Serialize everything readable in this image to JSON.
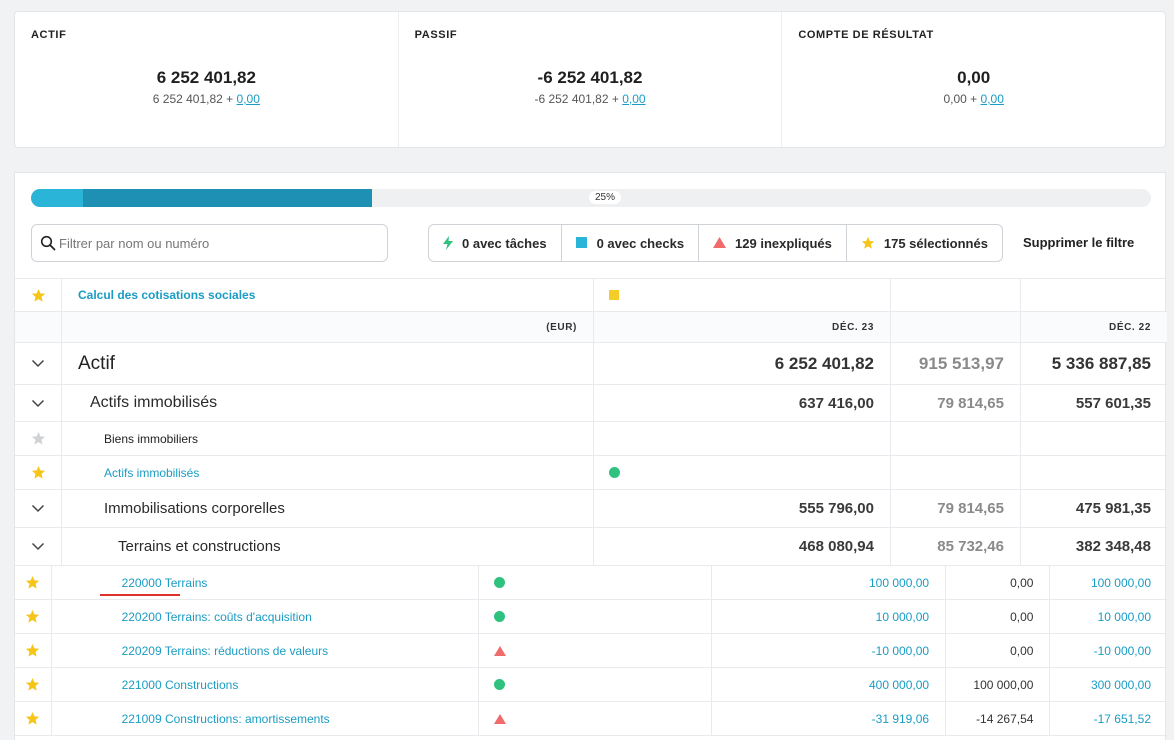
{
  "summary": {
    "actif": {
      "title": "ACTIF",
      "main": "6 252 401,82",
      "sub": "6 252 401,82 +",
      "sub_link": "0,00"
    },
    "passif": {
      "title": "PASSIF",
      "main": "-6 252 401,82",
      "sub": "-6 252 401,82 +",
      "sub_link": "0,00"
    },
    "resultat": {
      "title": "COMPTE DE RÉSULTAT",
      "main": "0,00",
      "sub": "0,00 +",
      "sub_link": "0,00"
    }
  },
  "progress": {
    "label": "25%",
    "segment_a_fraction": 0.046,
    "segment_b_fraction": 0.258,
    "segment_a_color": "#29b4d8",
    "segment_b_color": "#1e90b4"
  },
  "search": {
    "placeholder": "Filtrer par nom ou numéro",
    "value": ""
  },
  "filters": [
    {
      "icon": "lightning-icon",
      "label": "0 avec tâches"
    },
    {
      "icon": "square-icon",
      "label": "0 avec checks"
    },
    {
      "icon": "triangle-icon",
      "label": "129 inexpliqués"
    },
    {
      "icon": "star-icon",
      "label": "175 sélectionnés"
    }
  ],
  "clear_filter_label": "Supprimer le filtre",
  "table": {
    "top_row": {
      "label": "Calcul des cotisations sociales",
      "status": "square"
    },
    "header": {
      "currency": "(EUR)",
      "col1": "DÉC. 23",
      "col2": "",
      "col3": "DÉC. 22"
    },
    "rows": [
      {
        "label": "Actif",
        "v1": "6 252 401,82",
        "v2": "915 513,97",
        "v3": "5 336 887,85"
      },
      {
        "label": "Actifs immobilisés",
        "v1": "637 416,00",
        "v2": "79 814,65",
        "v3": "557 601,35"
      },
      {
        "label": "Biens immobiliers"
      },
      {
        "label": "Actifs immobilisés",
        "status": "dot"
      },
      {
        "label": "Immobilisations corporelles",
        "v1": "555 796,00",
        "v2": "79 814,65",
        "v3": "475 981,35"
      },
      {
        "label": "Terrains et constructions",
        "v1": "468 080,94",
        "v2": "85 732,46",
        "v3": "382 348,48"
      },
      {
        "label": "220000 Terrains",
        "status": "dot",
        "v1": "100 000,00",
        "v2": "0,00",
        "v3": "100 000,00"
      },
      {
        "label": "220200 Terrains: coûts d'acquisition",
        "status": "dot",
        "v1": "10 000,00",
        "v2": "0,00",
        "v3": "10 000,00"
      },
      {
        "label": "220209 Terrains: réductions de valeurs",
        "status": "triangle",
        "v1": "-10 000,00",
        "v2": "0,00",
        "v3": "-10 000,00"
      },
      {
        "label": "221000 Constructions",
        "status": "dot",
        "v1": "400 000,00",
        "v2": "100 000,00",
        "v3": "300 000,00"
      },
      {
        "label": "221009 Constructions: amortissements",
        "status": "triangle",
        "v1": "-31 919,06",
        "v2": "-14 267,54",
        "v3": "-17 651,52"
      }
    ]
  },
  "colors": {
    "link": "#1a9cc4",
    "star": "#f5c518",
    "star_off": "#d0d3d6",
    "ok": "#2ec27e",
    "warn": "#f06b6b",
    "check": "#f5cd28"
  }
}
